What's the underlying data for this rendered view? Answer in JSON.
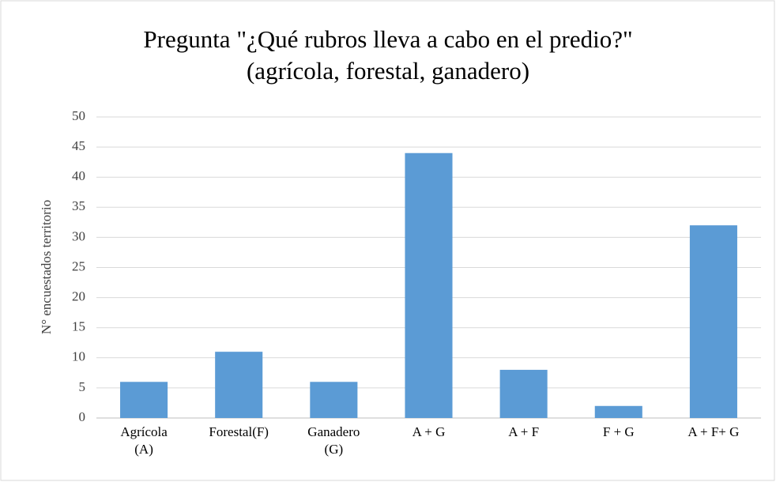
{
  "chart_data": {
    "type": "bar",
    "title": "Pregunta \"¿Qué rubros lleva a cabo en el predio?\" (agrícola, forestal, ganadero)",
    "y_label": "N°  encuestados territorio",
    "categories": [
      "Agrícola (A)",
      "Forestal(F)",
      "Ganadero (G)",
      "A + G",
      "A + F",
      "F + G",
      "A + F+ G"
    ],
    "values": [
      6,
      11,
      6,
      44,
      8,
      2,
      32
    ],
    "color": "#5b9bd5",
    "ylim": [
      0,
      50
    ],
    "yticks": [
      0,
      5,
      10,
      15,
      20,
      25,
      30,
      35,
      40,
      45,
      50
    ],
    "grid": true
  }
}
